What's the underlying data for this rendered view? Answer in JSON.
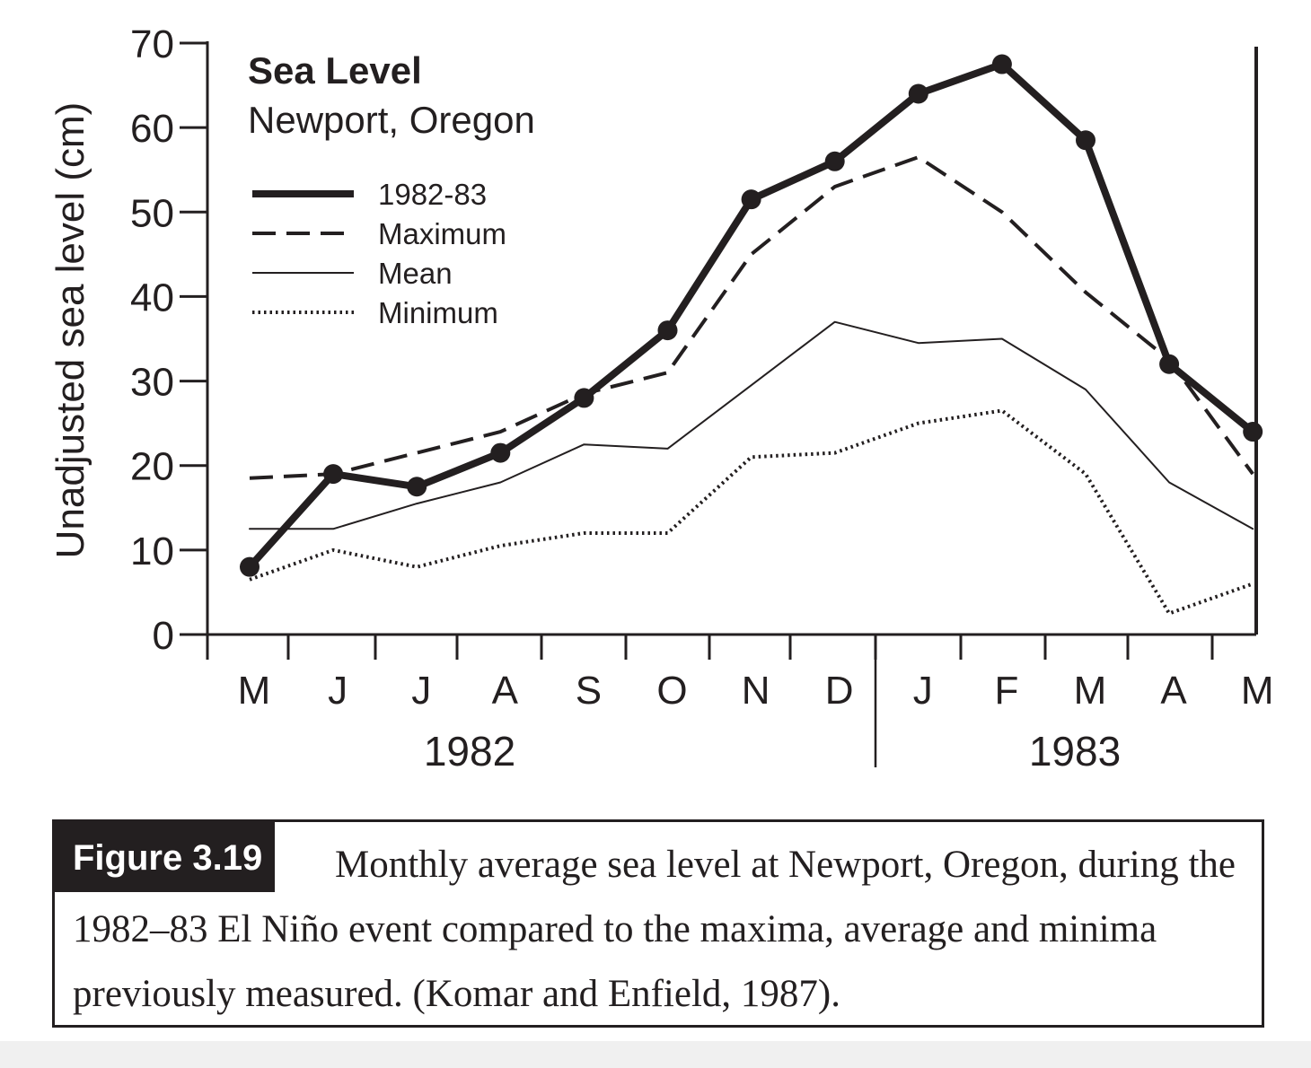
{
  "chart_data": {
    "type": "line",
    "title": "Sea Level",
    "subtitle": "Newport, Oregon",
    "ylabel": "Unadjusted sea level (cm)",
    "xlabel": "",
    "ylim": [
      0,
      70
    ],
    "yticks": [
      "0",
      "10",
      "20",
      "30",
      "40",
      "50",
      "60",
      "70"
    ],
    "categories": [
      "M",
      "J",
      "J",
      "A",
      "S",
      "O",
      "N",
      "D",
      "J",
      "F",
      "M",
      "A",
      "M"
    ],
    "years": [
      "1982",
      "1983"
    ],
    "grid": false,
    "legend_position": "top-left",
    "series": [
      {
        "name": "1982-83",
        "style": "thick-solid-markers",
        "values": [
          8,
          19,
          17.5,
          21.5,
          28,
          36,
          51.5,
          56,
          64,
          67.5,
          58.5,
          32,
          24
        ]
      },
      {
        "name": "Maximum",
        "style": "dashed",
        "values": [
          18.5,
          19,
          21.5,
          24,
          28.5,
          31,
          45,
          53,
          56.5,
          50,
          40.5,
          32.5,
          19
        ]
      },
      {
        "name": "Mean",
        "style": "thin-solid",
        "values": [
          12.5,
          12.5,
          15.5,
          18,
          22.5,
          22,
          29.5,
          37,
          34.5,
          35,
          29,
          18,
          12.5
        ]
      },
      {
        "name": "Minimum",
        "style": "dotted",
        "values": [
          6.5,
          10,
          8,
          10.5,
          12,
          12,
          21,
          21.5,
          25,
          26.5,
          19,
          2.5,
          6
        ]
      }
    ]
  },
  "colors": {
    "ink": "#231f20",
    "background": "#ffffff"
  },
  "caption": {
    "label": "Figure 3.19",
    "text": "Monthly average sea level at Newport, Oregon, during the 1982–83 El Niño event compared to the maxima, average and minima previously measured. (Komar and Enfield, 1987)."
  }
}
